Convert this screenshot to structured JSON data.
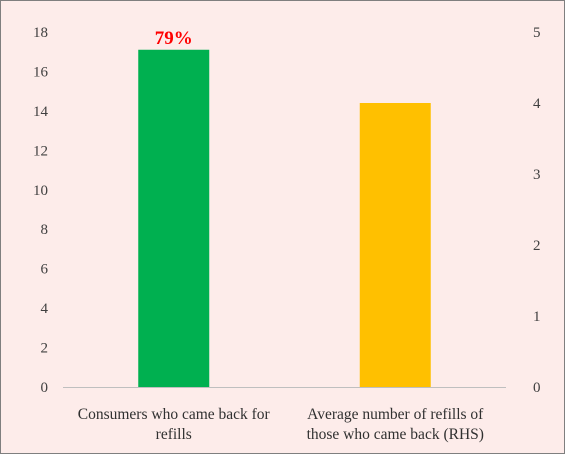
{
  "chart_data": {
    "type": "bar",
    "categories": [
      [
        "Consumers  who came back for",
        "refills"
      ],
      [
        "Average number of refills of",
        "those who came back (RHS)"
      ]
    ],
    "series": [
      {
        "values": [
          17.1,
          null
        ],
        "color": "#00b050",
        "axis": "left"
      },
      {
        "values": [
          null,
          4.0
        ],
        "color": "#ffc000",
        "axis": "right"
      }
    ],
    "left_axis": {
      "ylim": [
        0,
        18
      ],
      "ticks": [
        "0",
        "2",
        "4",
        "6",
        "8",
        "10",
        "12",
        "14",
        "16",
        "18"
      ]
    },
    "right_axis": {
      "ylim": [
        0,
        5
      ],
      "ticks": [
        "0",
        "1",
        "2",
        "3",
        "4",
        "5"
      ]
    },
    "data_labels": [
      "79%",
      ""
    ],
    "grid": false,
    "title": "",
    "xlabel": "",
    "ylabel": "",
    "background_color": "#fdecea"
  }
}
